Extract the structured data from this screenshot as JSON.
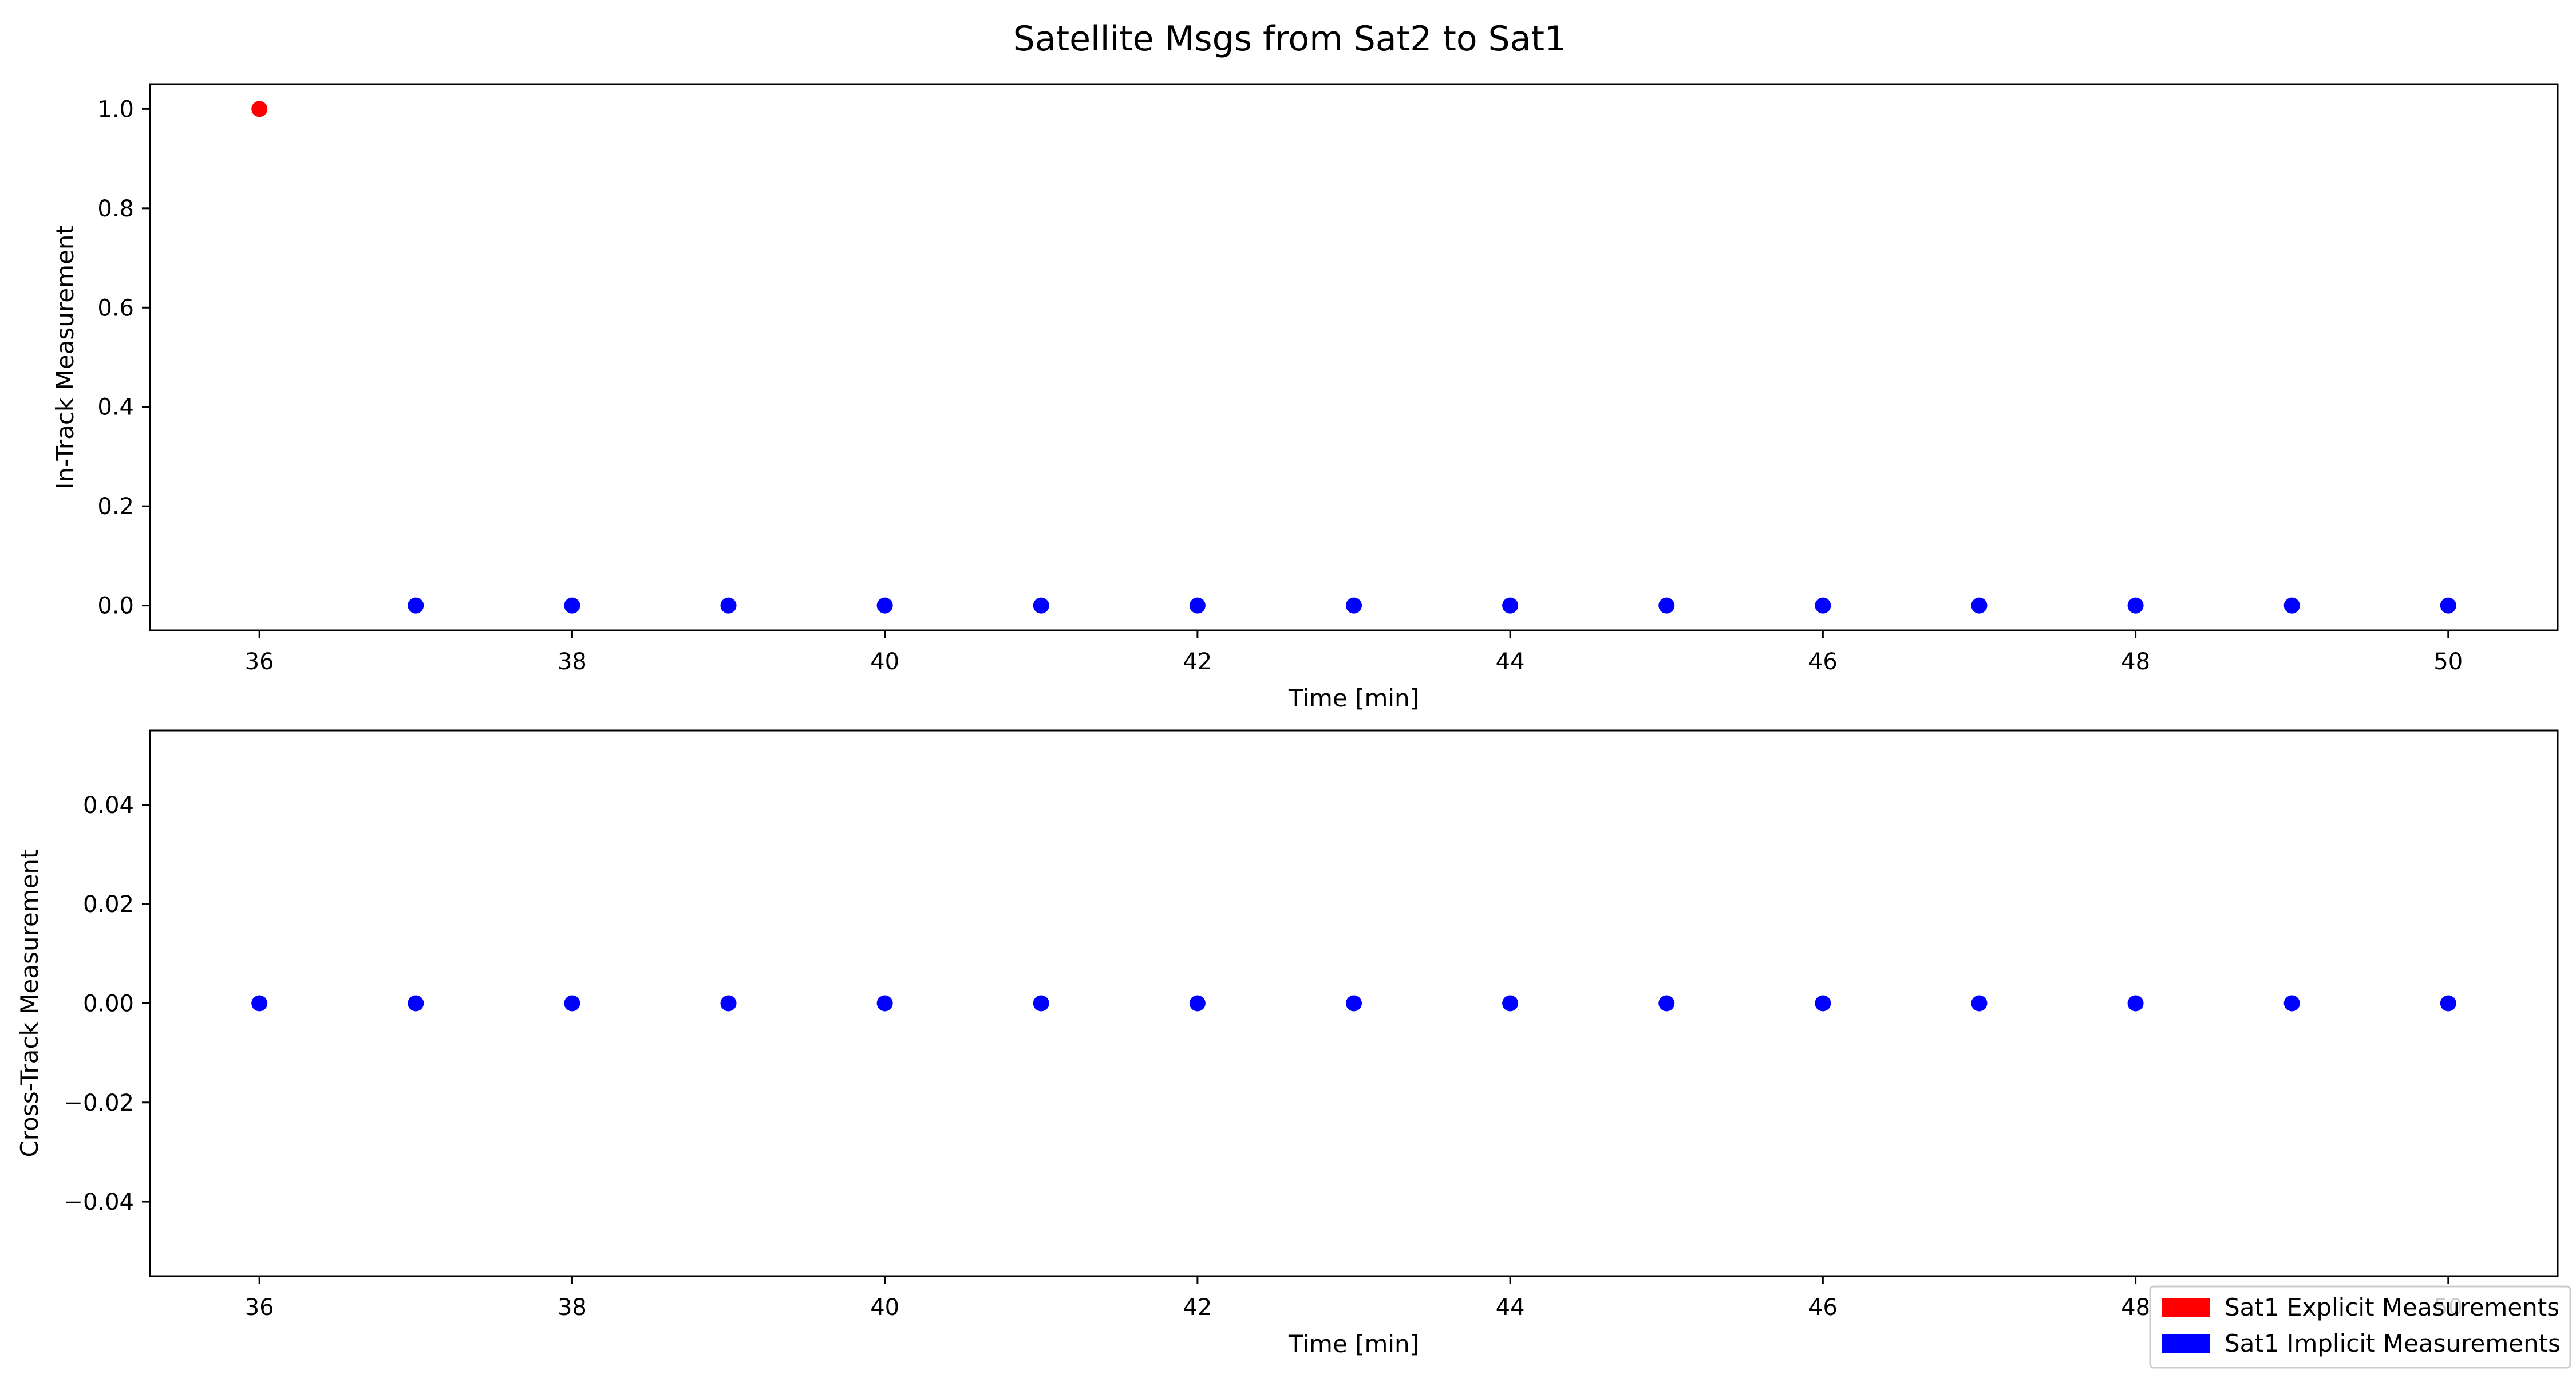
{
  "figure": {
    "title": "Satellite Msgs from Sat2 to Sat1"
  },
  "colors": {
    "explicit": "#ff0000",
    "implicit": "#0000ff",
    "axis": "#000000"
  },
  "legend": {
    "placement": "lower-right",
    "entries": [
      {
        "label": "Sat1 Explicit Measurements",
        "color": "#ff0000"
      },
      {
        "label": "Sat1 Implicit Measurements",
        "color": "#0000ff"
      }
    ]
  },
  "chart_data": [
    {
      "type": "scatter",
      "xlabel": "Time [min]",
      "ylabel": "In-Track Measurement",
      "xlim": [
        35.3,
        50.7
      ],
      "ylim": [
        -0.05,
        1.05
      ],
      "xticks": [
        36,
        38,
        40,
        42,
        44,
        46,
        48,
        50
      ],
      "yticks": [
        0.0,
        0.2,
        0.4,
        0.6,
        0.8,
        1.0
      ],
      "ytick_labels": [
        "0.0",
        "0.2",
        "0.4",
        "0.6",
        "0.8",
        "1.0"
      ],
      "grid": false,
      "series": [
        {
          "name": "Sat1 Explicit Measurements",
          "color": "#ff0000",
          "x": [
            36
          ],
          "y": [
            1.0
          ]
        },
        {
          "name": "Sat1 Implicit Measurements",
          "color": "#0000ff",
          "x": [
            37,
            38,
            39,
            40,
            41,
            42,
            43,
            44,
            45,
            46,
            47,
            48,
            49,
            50
          ],
          "y": [
            0,
            0,
            0,
            0,
            0,
            0,
            0,
            0,
            0,
            0,
            0,
            0,
            0,
            0
          ]
        }
      ]
    },
    {
      "type": "scatter",
      "xlabel": "Time [min]",
      "ylabel": "Cross-Track Measurement",
      "xlim": [
        35.3,
        50.7
      ],
      "ylim": [
        -0.055,
        0.055
      ],
      "xticks": [
        36,
        38,
        40,
        42,
        44,
        46,
        48,
        50
      ],
      "yticks": [
        -0.04,
        -0.02,
        0.0,
        0.02,
        0.04
      ],
      "ytick_labels": [
        "−0.04",
        "−0.02",
        "0.00",
        "0.02",
        "0.04"
      ],
      "grid": false,
      "series": [
        {
          "name": "Sat1 Implicit Measurements",
          "color": "#0000ff",
          "x": [
            36,
            37,
            38,
            39,
            40,
            41,
            42,
            43,
            44,
            45,
            46,
            47,
            48,
            49,
            50
          ],
          "y": [
            0,
            0,
            0,
            0,
            0,
            0,
            0,
            0,
            0,
            0,
            0,
            0,
            0,
            0,
            0
          ]
        }
      ]
    }
  ]
}
